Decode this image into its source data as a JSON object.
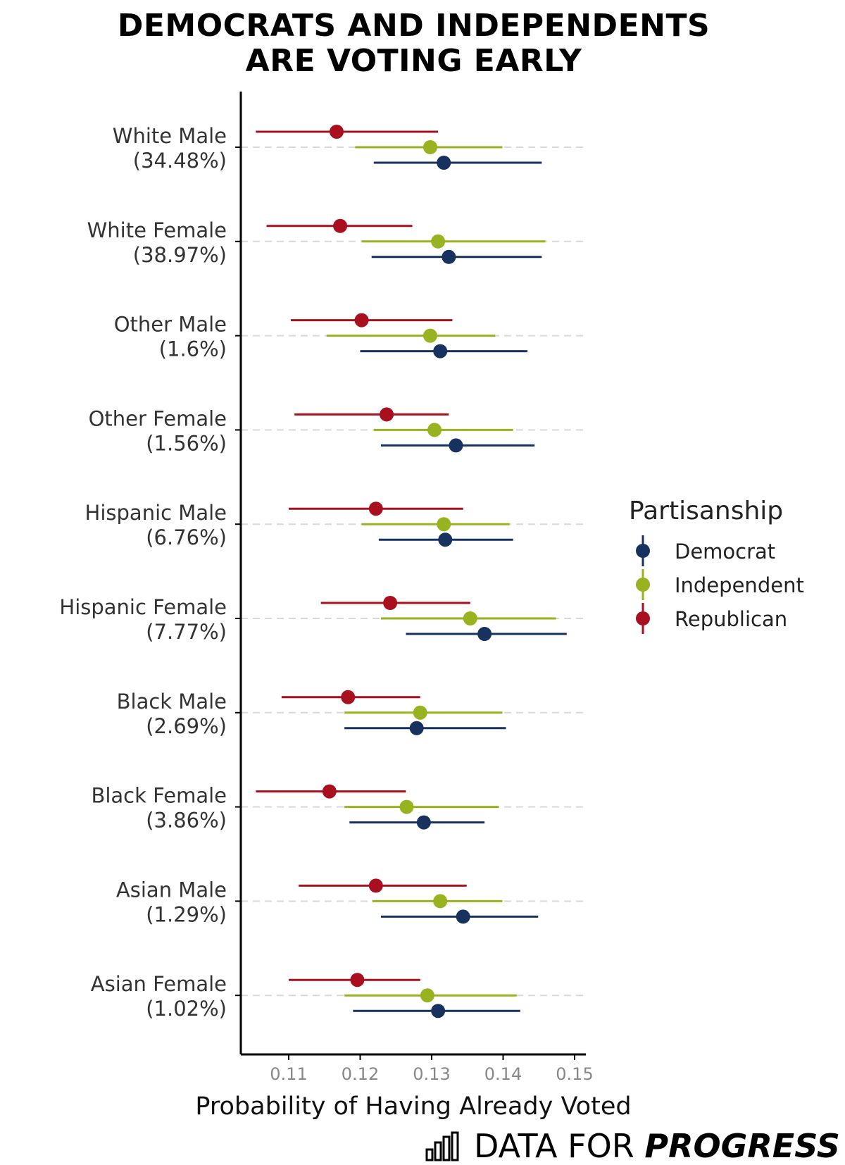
{
  "title_lines": [
    "DEMOCRATS AND INDEPENDENTS",
    "ARE VOTING EARLY"
  ],
  "colors": {
    "Democrat": "#17325f",
    "Independent": "#97b31f",
    "Republican": "#a81020",
    "grid": "#d9d9d9",
    "axis": "#000000",
    "tick_label": "#888888"
  },
  "chart_data": {
    "type": "scatter",
    "title": "DEMOCRATS AND INDEPENDENTS ARE VOTING EARLY",
    "xlabel": "Probability of Having Already Voted",
    "ylabel": "",
    "xlim": [
      0.1035,
      0.1515
    ],
    "xticks": [
      0.11,
      0.12,
      0.13,
      0.14,
      0.15
    ],
    "xtick_labels": [
      "0.11",
      "0.12",
      "0.13",
      "0.14",
      "0.15"
    ],
    "grid": "horizontal dashed",
    "legend_title": "Partisanship",
    "legend_position": "right",
    "categories": [
      {
        "name": "White Male",
        "share": "(34.48%)"
      },
      {
        "name": "White Female",
        "share": "(38.97%)"
      },
      {
        "name": "Other Male",
        "share": "(1.6%)"
      },
      {
        "name": "Other Female",
        "share": "(1.56%)"
      },
      {
        "name": "Hispanic Male",
        "share": "(6.76%)"
      },
      {
        "name": "Hispanic Female",
        "share": "(7.77%)"
      },
      {
        "name": "Black Male",
        "share": "(2.69%)"
      },
      {
        "name": "Black Female",
        "share": "(3.86%)"
      },
      {
        "name": "Asian Male",
        "share": "(1.29%)"
      },
      {
        "name": "Asian Female",
        "share": "(1.02%)"
      }
    ],
    "series": [
      {
        "name": "Republican",
        "estimate": [
          0.1167,
          0.1172,
          0.1202,
          0.1237,
          0.1222,
          0.1242,
          0.1183,
          0.1157,
          0.1222,
          0.1196
        ],
        "lower": [
          0.1054,
          0.1069,
          0.1103,
          0.1108,
          0.11,
          0.1145,
          0.109,
          0.1054,
          0.1114,
          0.11
        ],
        "upper": [
          0.1309,
          0.1273,
          0.1329,
          0.1324,
          0.1344,
          0.1354,
          0.1284,
          0.1264,
          0.1349,
          0.1284
        ]
      },
      {
        "name": "Independent",
        "estimate": [
          0.1298,
          0.1309,
          0.1298,
          0.1304,
          0.1317,
          0.1354,
          0.1284,
          0.1265,
          0.1312,
          0.1294
        ],
        "lower": [
          0.1193,
          0.1202,
          0.1153,
          0.1219,
          0.1202,
          0.1229,
          0.1178,
          0.1178,
          0.1217,
          0.1178
        ],
        "upper": [
          0.1399,
          0.1459,
          0.1389,
          0.1414,
          0.1409,
          0.1474,
          0.1399,
          0.1394,
          0.1399,
          0.1419
        ]
      },
      {
        "name": "Democrat",
        "estimate": [
          0.1317,
          0.1324,
          0.1312,
          0.1334,
          0.1319,
          0.1374,
          0.1279,
          0.1289,
          0.1344,
          0.1309
        ],
        "lower": [
          0.1219,
          0.1216,
          0.12,
          0.1229,
          0.1226,
          0.1264,
          0.1178,
          0.1185,
          0.1229,
          0.119
        ],
        "upper": [
          0.1454,
          0.1454,
          0.1434,
          0.1444,
          0.1414,
          0.1489,
          0.1404,
          0.1374,
          0.1449,
          0.1424
        ]
      }
    ]
  },
  "legend": {
    "title": "Partisanship",
    "items": [
      "Democrat",
      "Independent",
      "Republican"
    ]
  },
  "brand": {
    "icon": "bar-chart-icon",
    "text_light": "DATA FOR ",
    "text_strong": "PROGRESS"
  }
}
